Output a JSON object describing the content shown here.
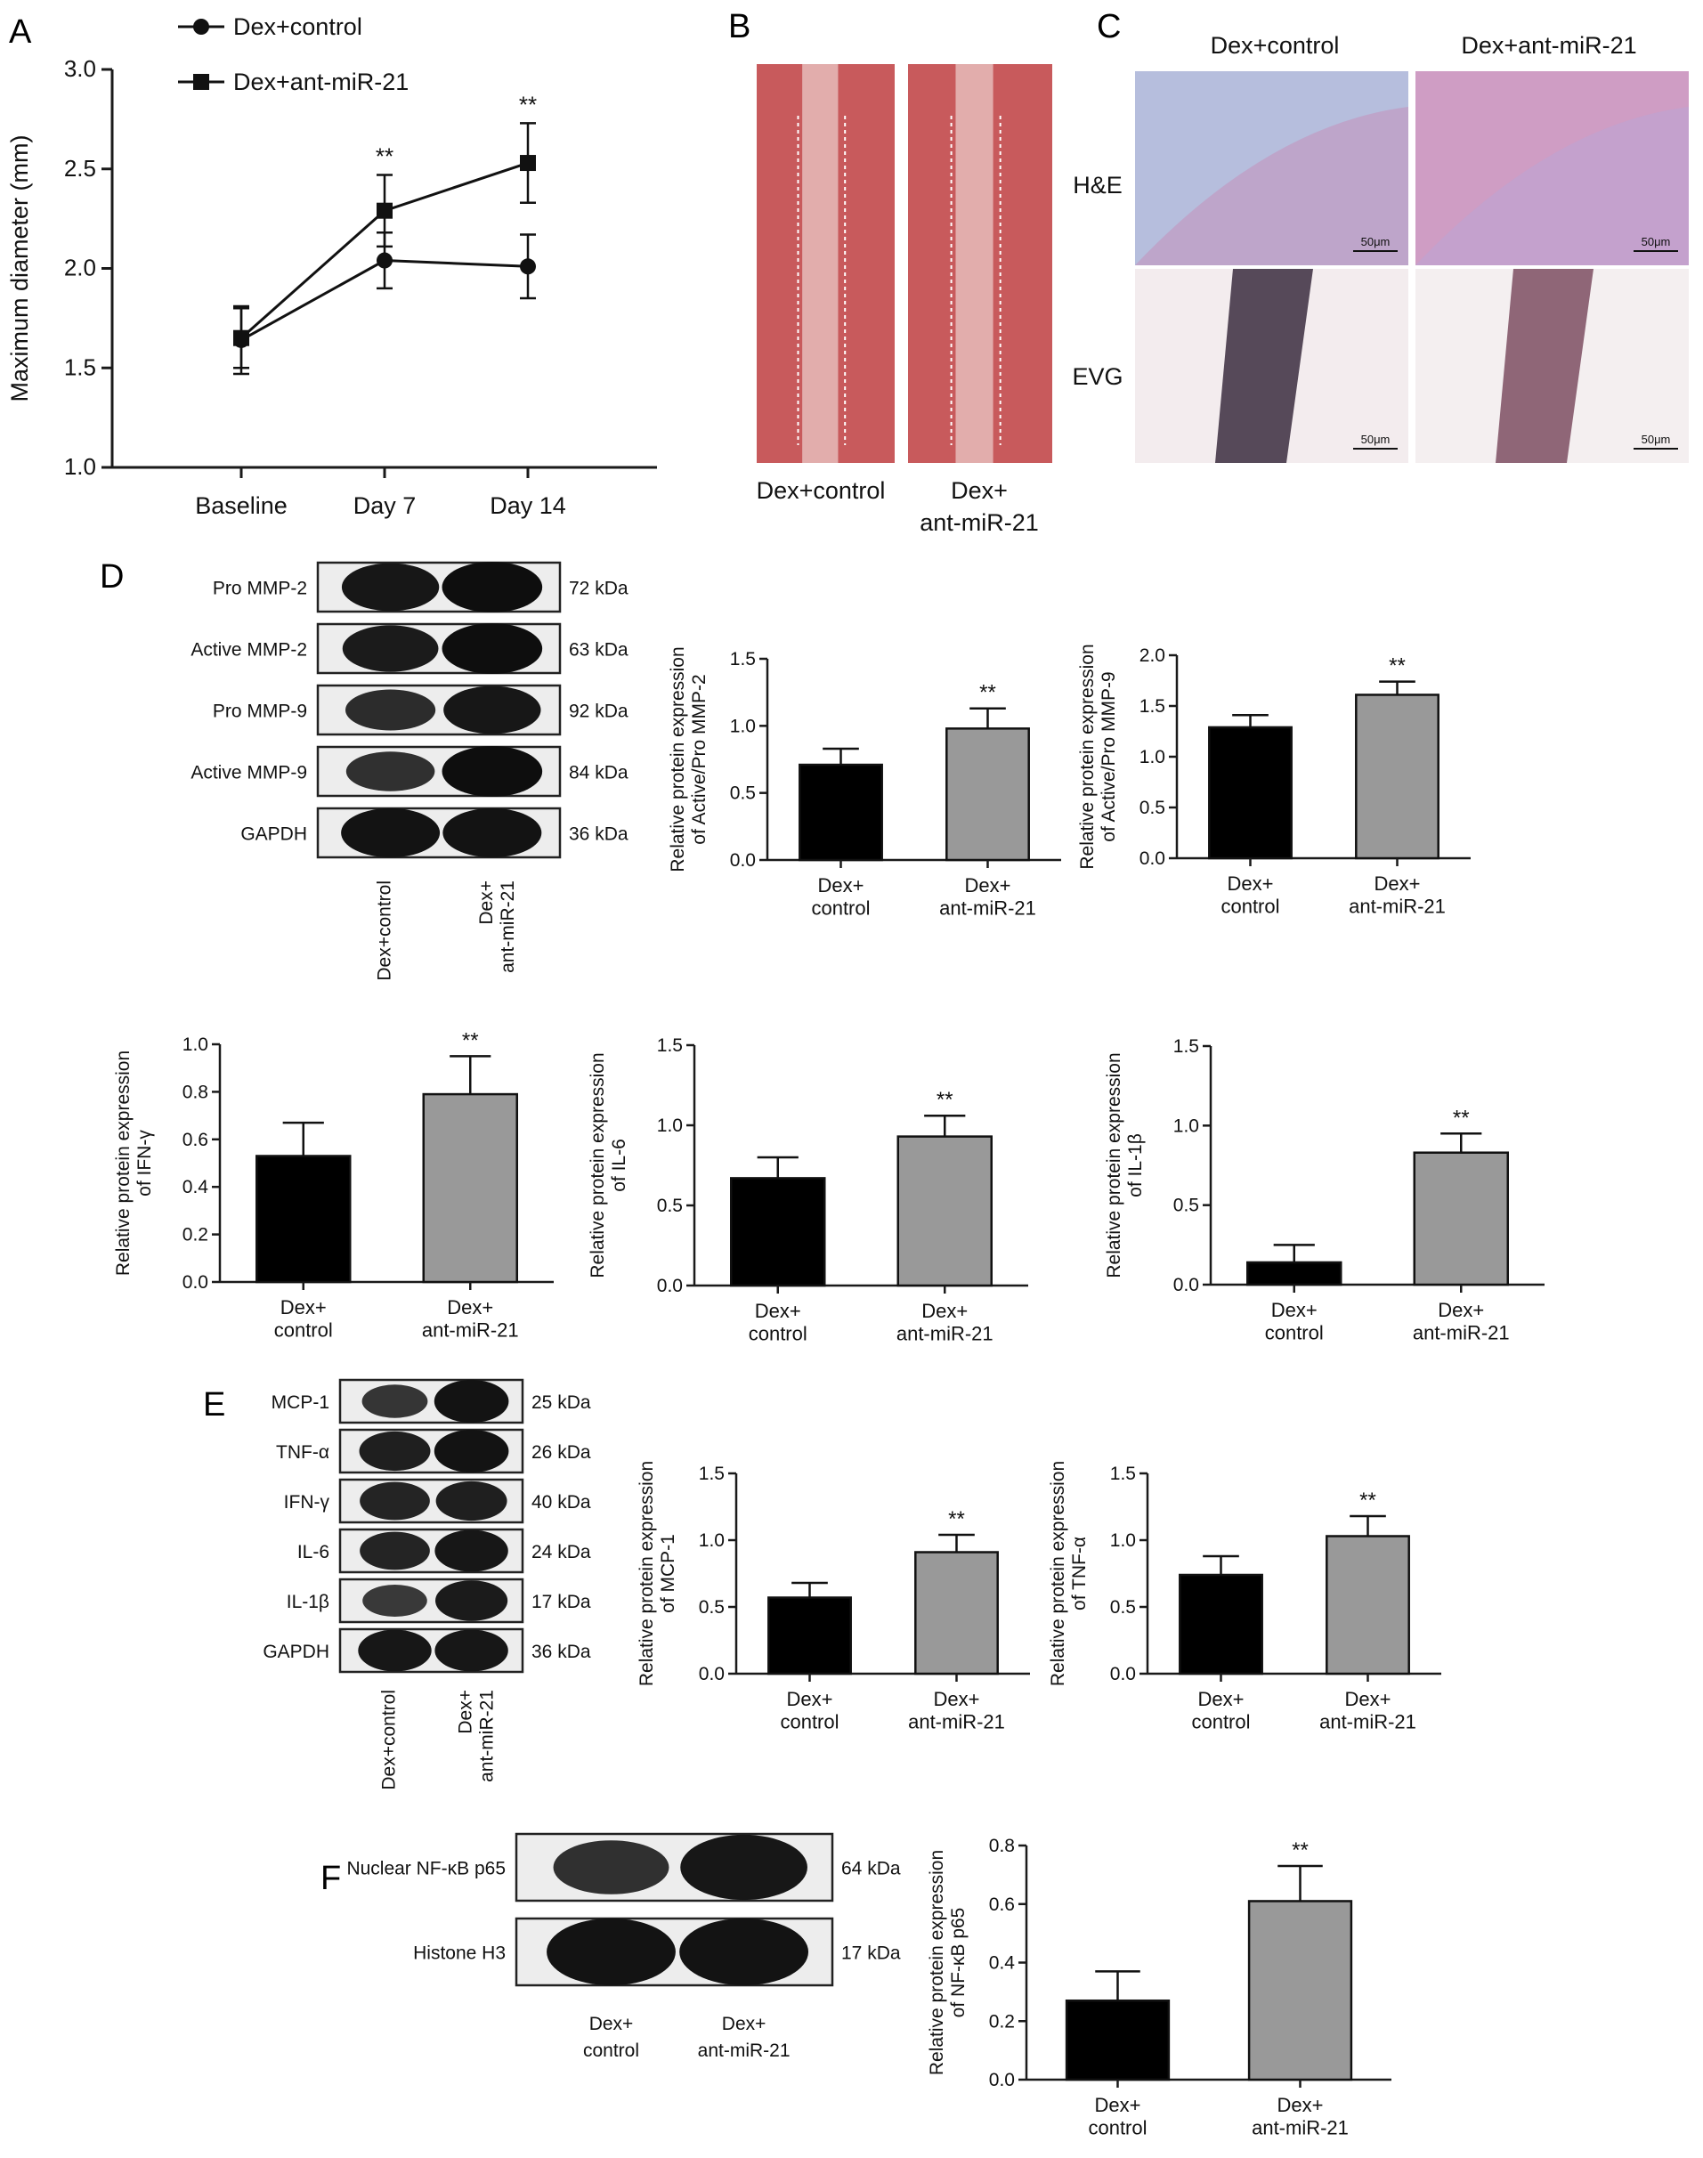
{
  "colors": {
    "control": "#000000",
    "treated": "#999999",
    "axis": "#1a1a1a"
  },
  "panels": [
    {
      "letter": "A"
    },
    {
      "letter": "B"
    },
    {
      "letter": "C"
    },
    {
      "letter": "D"
    },
    {
      "letter": "E"
    },
    {
      "letter": "F"
    }
  ],
  "panel_b": {
    "labels": [
      "Dex+control",
      "Dex+\nant-miR-21"
    ],
    "tissue_color": "#c85a5c"
  },
  "panel_c": {
    "columns": [
      "Dex+control",
      "Dex+ant-miR-21"
    ],
    "rows": [
      "H&E",
      "EVG"
    ],
    "scale_bar": "50μm"
  },
  "blots": {
    "d": {
      "rows": [
        {
          "label": "Pro MMP-2",
          "kda": "72 kDa",
          "band": [
            0.85,
            0.95
          ]
        },
        {
          "label": "Active MMP-2",
          "kda": "63 kDa",
          "band": [
            0.8,
            0.95
          ]
        },
        {
          "label": "Pro MMP-9",
          "kda": "92 kDa",
          "band": [
            0.6,
            0.85
          ]
        },
        {
          "label": "Active MMP-9",
          "kda": "84 kDa",
          "band": [
            0.55,
            0.95
          ]
        },
        {
          "label": "GAPDH",
          "kda": "36 kDa",
          "band": [
            0.9,
            0.9
          ]
        }
      ],
      "lanes": [
        "Dex+control",
        "Dex+\nant-miR-21"
      ]
    },
    "e": {
      "rows": [
        {
          "label": "MCP-1",
          "kda": "25 kDa",
          "band": [
            0.5,
            0.9
          ]
        },
        {
          "label": "TNF-α",
          "kda": "26 kDa",
          "band": [
            0.75,
            0.9
          ]
        },
        {
          "label": "IFN-γ",
          "kda": "40 kDa",
          "band": [
            0.7,
            0.75
          ]
        },
        {
          "label": "IL-6",
          "kda": "24 kDa",
          "band": [
            0.7,
            0.85
          ]
        },
        {
          "label": "IL-1β",
          "kda": "17 kDa",
          "band": [
            0.45,
            0.8
          ]
        },
        {
          "label": "GAPDH",
          "kda": "36 kDa",
          "band": [
            0.85,
            0.85
          ]
        }
      ],
      "lanes": [
        "Dex+control",
        "Dex+\nant-miR-21"
      ]
    },
    "f": {
      "rows": [
        {
          "label": "Nuclear NF-κB p65",
          "kda": "64 kDa",
          "band": [
            0.55,
            0.85
          ]
        },
        {
          "label": "Histone H3",
          "kda": "17 kDa",
          "band": [
            0.9,
            0.9
          ]
        }
      ],
      "lanes": [
        "Dex+\ncontrol",
        "Dex+\nant-miR-21"
      ]
    }
  },
  "chart_data": [
    {
      "id": "A",
      "type": "line",
      "x": [
        "Baseline",
        "Day 7",
        "Day 14"
      ],
      "ylabel": "Maximum diameter (mm)",
      "ylim": [
        1.0,
        3.0
      ],
      "yticks": [
        1.0,
        1.5,
        2.0,
        2.5,
        3.0
      ],
      "legend": "top-left",
      "series": [
        {
          "name": "Dex+control",
          "marker": "circle",
          "values": [
            1.64,
            2.04,
            2.01
          ],
          "errors": [
            0.17,
            0.14,
            0.16
          ]
        },
        {
          "name": "Dex+ant-miR-21",
          "marker": "square",
          "values": [
            1.65,
            2.29,
            2.53
          ],
          "errors": [
            0.15,
            0.18,
            0.2
          ]
        }
      ],
      "annotations": [
        "",
        "**",
        "**"
      ]
    },
    {
      "id": "D1",
      "type": "bar",
      "categories": [
        "Dex+\ncontrol",
        "Dex+\nant-miR-21"
      ],
      "values": [
        0.71,
        0.98
      ],
      "errors": [
        0.12,
        0.15
      ],
      "ylim": [
        0,
        1.5
      ],
      "yticks": [
        0.0,
        0.5,
        1.0,
        1.5
      ],
      "ylabel": "Relative protein expression\nof Active/Pro MMP-2",
      "annotations": [
        "",
        "**"
      ]
    },
    {
      "id": "D2",
      "type": "bar",
      "categories": [
        "Dex+\ncontrol",
        "Dex+\nant-miR-21"
      ],
      "values": [
        1.29,
        1.61
      ],
      "errors": [
        0.12,
        0.13
      ],
      "ylim": [
        0,
        2.0
      ],
      "yticks": [
        0.0,
        0.5,
        1.0,
        1.5,
        2.0
      ],
      "ylabel": "Relative protein expression\nof Active/Pro MMP-9",
      "annotations": [
        "",
        "**"
      ]
    },
    {
      "id": "D3",
      "type": "bar",
      "categories": [
        "Dex+\ncontrol",
        "Dex+\nant-miR-21"
      ],
      "values": [
        0.53,
        0.79
      ],
      "errors": [
        0.14,
        0.16
      ],
      "ylim": [
        0,
        1.0
      ],
      "yticks": [
        0.0,
        0.2,
        0.4,
        0.6,
        0.8,
        1.0
      ],
      "ylabel": "Relative protein expression\nof IFN-γ",
      "annotations": [
        "",
        "**"
      ]
    },
    {
      "id": "D4",
      "type": "bar",
      "categories": [
        "Dex+\ncontrol",
        "Dex+\nant-miR-21"
      ],
      "values": [
        0.67,
        0.93
      ],
      "errors": [
        0.13,
        0.13
      ],
      "ylim": [
        0,
        1.5
      ],
      "yticks": [
        0.0,
        0.5,
        1.0,
        1.5
      ],
      "ylabel": "Relative protein expression\nof IL-6",
      "annotations": [
        "",
        "**"
      ]
    },
    {
      "id": "D5",
      "type": "bar",
      "categories": [
        "Dex+\ncontrol",
        "Dex+\nant-miR-21"
      ],
      "values": [
        0.14,
        0.83
      ],
      "errors": [
        0.11,
        0.12
      ],
      "ylim": [
        0,
        1.5
      ],
      "yticks": [
        0.0,
        0.5,
        1.0,
        1.5
      ],
      "ylabel": "Relative protein expression\nof IL-1β",
      "annotations": [
        "",
        "**"
      ]
    },
    {
      "id": "E1",
      "type": "bar",
      "categories": [
        "Dex+\ncontrol",
        "Dex+\nant-miR-21"
      ],
      "values": [
        0.57,
        0.91
      ],
      "errors": [
        0.11,
        0.13
      ],
      "ylim": [
        0,
        1.5
      ],
      "yticks": [
        0.0,
        0.5,
        1.0,
        1.5
      ],
      "ylabel": "Relative protein expression\nof MCP-1",
      "annotations": [
        "",
        "**"
      ]
    },
    {
      "id": "E2",
      "type": "bar",
      "categories": [
        "Dex+\ncontrol",
        "Dex+\nant-miR-21"
      ],
      "values": [
        0.74,
        1.03
      ],
      "errors": [
        0.14,
        0.15
      ],
      "ylim": [
        0,
        1.5
      ],
      "yticks": [
        0.0,
        0.5,
        1.0,
        1.5
      ],
      "ylabel": "Relative protein expression\nof TNF-α",
      "annotations": [
        "",
        "**"
      ]
    },
    {
      "id": "F1",
      "type": "bar",
      "categories": [
        "Dex+\ncontrol",
        "Dex+\nant-miR-21"
      ],
      "values": [
        0.27,
        0.61
      ],
      "errors": [
        0.1,
        0.12
      ],
      "ylim": [
        0,
        0.8
      ],
      "yticks": [
        0.0,
        0.2,
        0.4,
        0.6,
        0.8
      ],
      "ylabel": "Relative protein expression\nof NF-κB p65",
      "annotations": [
        "",
        "**"
      ]
    }
  ]
}
